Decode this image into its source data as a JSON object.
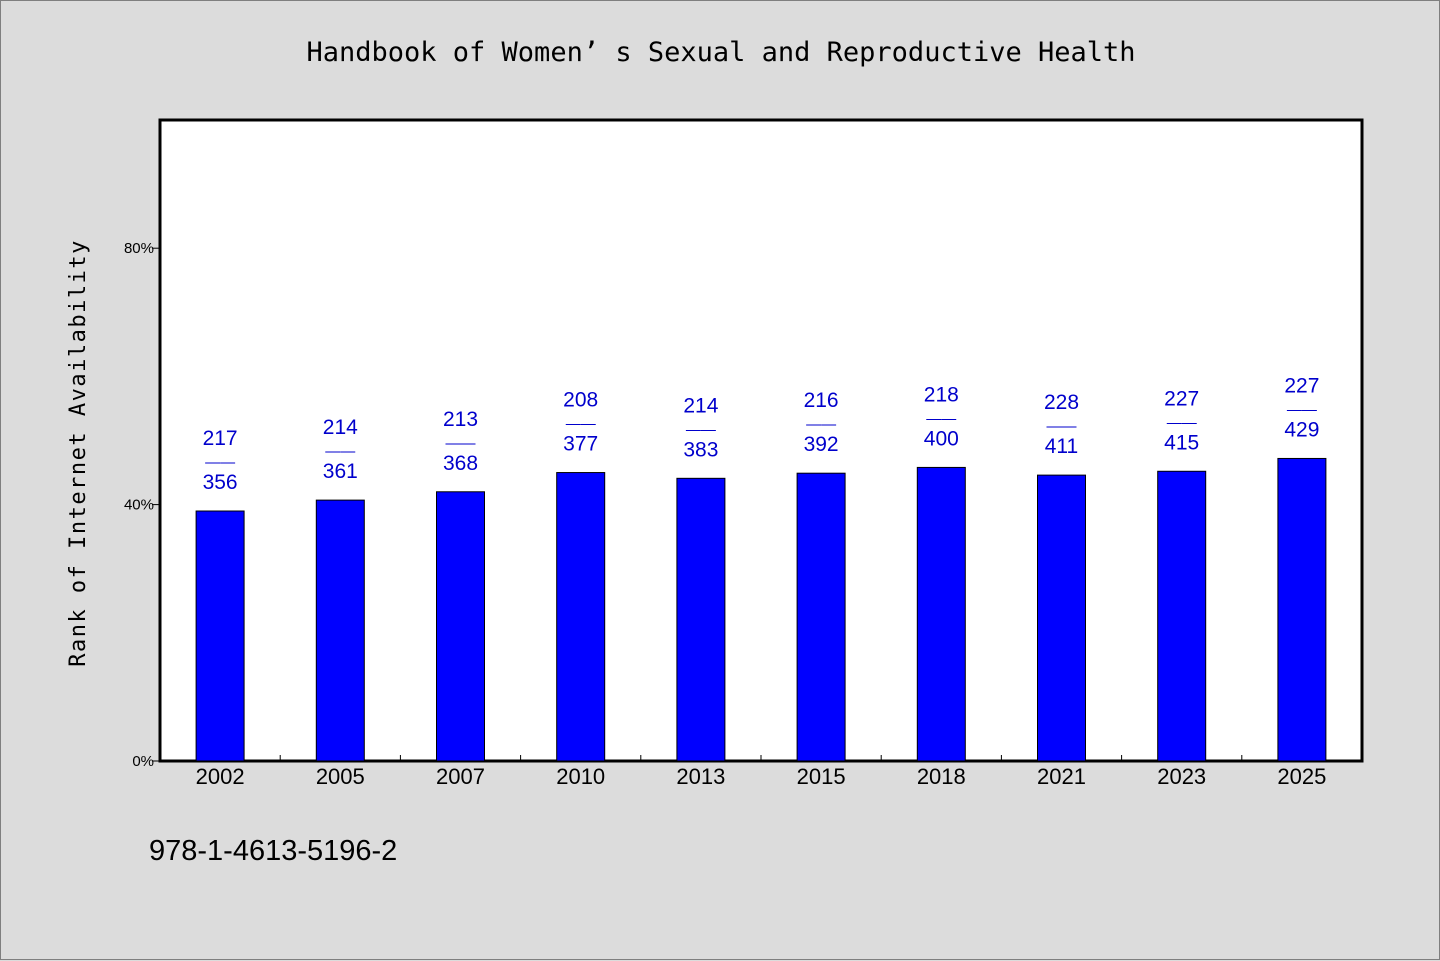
{
  "chart_data": {
    "type": "bar",
    "title": "Handbook of Women’ s Sexual and Reproductive Health",
    "xlabel": "",
    "ylabel": "Rank of Internet Availability",
    "categories": [
      "2002",
      "2005",
      "2007",
      "2010",
      "2013",
      "2015",
      "2018",
      "2021",
      "2023",
      "2025"
    ],
    "series": [
      {
        "values": [
          39,
          40.7,
          42,
          45,
          44.1,
          44.9,
          45.8,
          44.6,
          45.2,
          47.2
        ]
      }
    ],
    "bar_labels": [
      {
        "top": "217",
        "sep": "——",
        "bottom": "356"
      },
      {
        "top": "214",
        "sep": "——",
        "bottom": "361"
      },
      {
        "top": "213",
        "sep": "——",
        "bottom": "368"
      },
      {
        "top": "208",
        "sep": "——",
        "bottom": "377"
      },
      {
        "top": "214",
        "sep": "——",
        "bottom": "383"
      },
      {
        "top": "216",
        "sep": "——",
        "bottom": "392"
      },
      {
        "top": "218",
        "sep": "——",
        "bottom": "400"
      },
      {
        "top": "228",
        "sep": "——",
        "bottom": "411"
      },
      {
        "top": "227",
        "sep": "——",
        "bottom": "415"
      },
      {
        "top": "227",
        "sep": "——",
        "bottom": "429"
      }
    ],
    "yticks": [
      0,
      40,
      80
    ],
    "ytick_labels": [
      "0%",
      "40%",
      "80%"
    ],
    "ylim": [
      0,
      100
    ],
    "grid": false,
    "legend": "none",
    "colors": {
      "bar": "#0000ff",
      "label": "#0000cc",
      "axis": "#000000",
      "plot_bg": "#ffffff",
      "page_bg": "#dcdcdc"
    }
  },
  "footer_text": "978-1-4613-5196-2"
}
